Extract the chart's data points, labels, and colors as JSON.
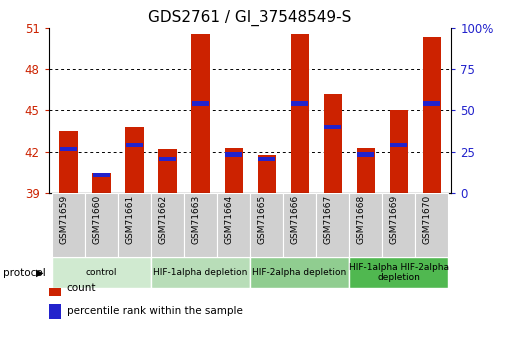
{
  "title": "GDS2761 / GI_37548549-S",
  "samples": [
    "GSM71659",
    "GSM71660",
    "GSM71661",
    "GSM71662",
    "GSM71663",
    "GSM71664",
    "GSM71665",
    "GSM71666",
    "GSM71667",
    "GSM71668",
    "GSM71669",
    "GSM71670"
  ],
  "count_values": [
    43.5,
    40.5,
    43.8,
    42.2,
    50.5,
    42.3,
    41.8,
    50.5,
    46.2,
    42.3,
    45.0,
    50.3
  ],
  "percentile_values": [
    42.2,
    40.3,
    42.5,
    41.5,
    45.5,
    41.8,
    41.5,
    45.5,
    43.8,
    41.8,
    42.5,
    45.5
  ],
  "y_min": 39,
  "y_max": 51,
  "y_ticks_left": [
    39,
    42,
    45,
    48,
    51
  ],
  "y_ticks_right_pos": [
    39,
    42,
    45,
    48,
    51
  ],
  "y_ticks_right_labels": [
    "0",
    "25",
    "50",
    "75",
    "100%"
  ],
  "grid_lines": [
    42,
    45,
    48
  ],
  "bar_color": "#CC2200",
  "percentile_color": "#2222CC",
  "bar_width": 0.55,
  "left_tick_color": "#CC2200",
  "right_tick_color": "#2222CC",
  "title_fontsize": 11,
  "tick_fontsize": 8.5,
  "sample_fontsize": 6.5,
  "group_configs": [
    {
      "start": 0,
      "end": 2,
      "label": "control",
      "color": "#d0ead0"
    },
    {
      "start": 3,
      "end": 5,
      "label": "HIF-1alpha depletion",
      "color": "#b8ddb8"
    },
    {
      "start": 6,
      "end": 8,
      "label": "HIF-2alpha depletion",
      "color": "#90cd90"
    },
    {
      "start": 9,
      "end": 11,
      "label": "HIF-1alpha HIF-2alpha\ndepletion",
      "color": "#50b850"
    }
  ],
  "legend_items": [
    {
      "color": "#CC2200",
      "label": "count"
    },
    {
      "color": "#2222CC",
      "label": "percentile rank within the sample"
    }
  ]
}
